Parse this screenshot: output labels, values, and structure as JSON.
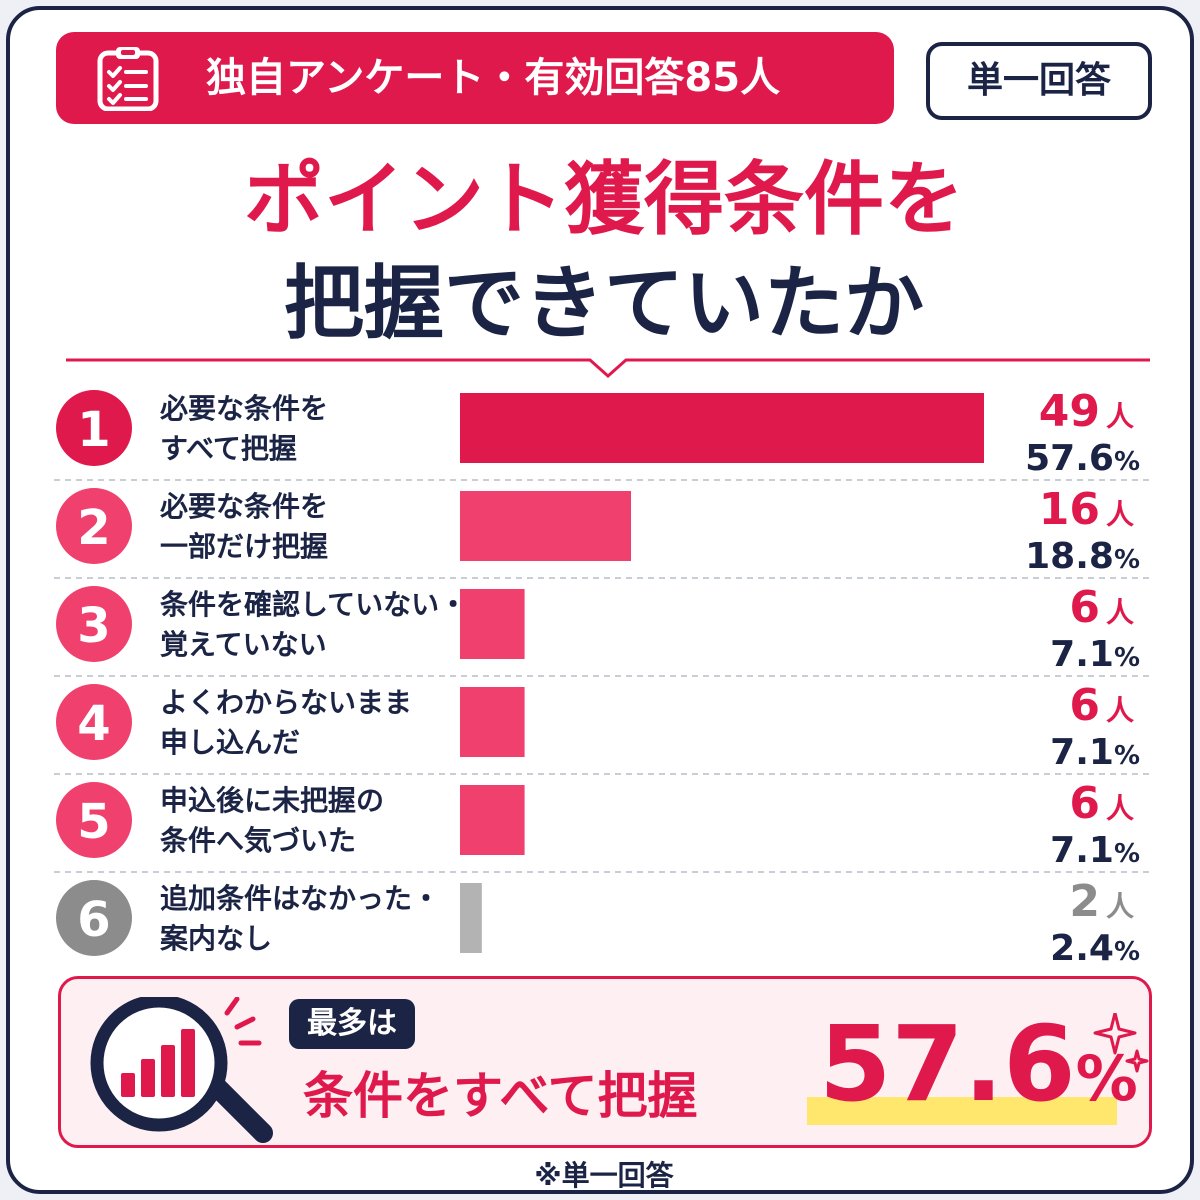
{
  "header": {
    "survey_label": "独自アンケート・有効回答85人",
    "answer_type": "単一回答",
    "icon": "clipboard-checklist-icon"
  },
  "title": {
    "line1": "ポイント獲得条件を",
    "line2": "把握できていたか"
  },
  "colors": {
    "brand_red": "#e0194d",
    "bar_pink": "#f0416e",
    "bar_gray": "#b3b3b3",
    "navy": "#1b2445",
    "highlight_yellow": "#ffe66d"
  },
  "chart_data": {
    "type": "bar",
    "orientation": "horizontal",
    "categories": [
      "必要な条件をすべて把握",
      "必要な条件を一部だけ把握",
      "条件を確認していない・覚えていない",
      "よくわからないまま申し込んだ",
      "申込後に未把握の条件へ気づいた",
      "追加条件はなかった・案内なし"
    ],
    "rows": [
      {
        "rank": "1",
        "line1": "必要な条件を",
        "line2": "すべて把握",
        "count": "49",
        "unit": "人",
        "percent": "57.6",
        "pct_sign": "%"
      },
      {
        "rank": "2",
        "line1": "必要な条件を",
        "line2": "一部だけ把握",
        "count": "16",
        "unit": "人",
        "percent": "18.8",
        "pct_sign": "%"
      },
      {
        "rank": "3",
        "line1": "条件を確認していない・",
        "line2": "覚えていない",
        "count": "6",
        "unit": "人",
        "percent": "7.1",
        "pct_sign": "%"
      },
      {
        "rank": "4",
        "line1": "よくわからないまま",
        "line2": "申し込んだ",
        "count": "6",
        "unit": "人",
        "percent": "7.1",
        "pct_sign": "%"
      },
      {
        "rank": "5",
        "line1": "申込後に未把握の",
        "line2": "条件へ気づいた",
        "count": "6",
        "unit": "人",
        "percent": "7.1",
        "pct_sign": "%"
      },
      {
        "rank": "6",
        "line1": "追加条件はなかった・",
        "line2": "案内なし",
        "count": "2",
        "unit": "人",
        "percent": "2.4",
        "pct_sign": "%"
      }
    ],
    "values": [
      57.6,
      18.8,
      7.1,
      7.1,
      7.1,
      2.4
    ],
    "counts": [
      49,
      16,
      6,
      6,
      6,
      2
    ],
    "xlim": [
      0,
      57.6
    ],
    "grid": false,
    "legend": "none"
  },
  "summary": {
    "tag": "最多は",
    "label": "条件をすべて把握",
    "value": "57.6",
    "unit": "%",
    "icon": "magnifier-bar-chart-icon",
    "decoration": "sparkle-icon"
  },
  "footnote": "※単一回答"
}
